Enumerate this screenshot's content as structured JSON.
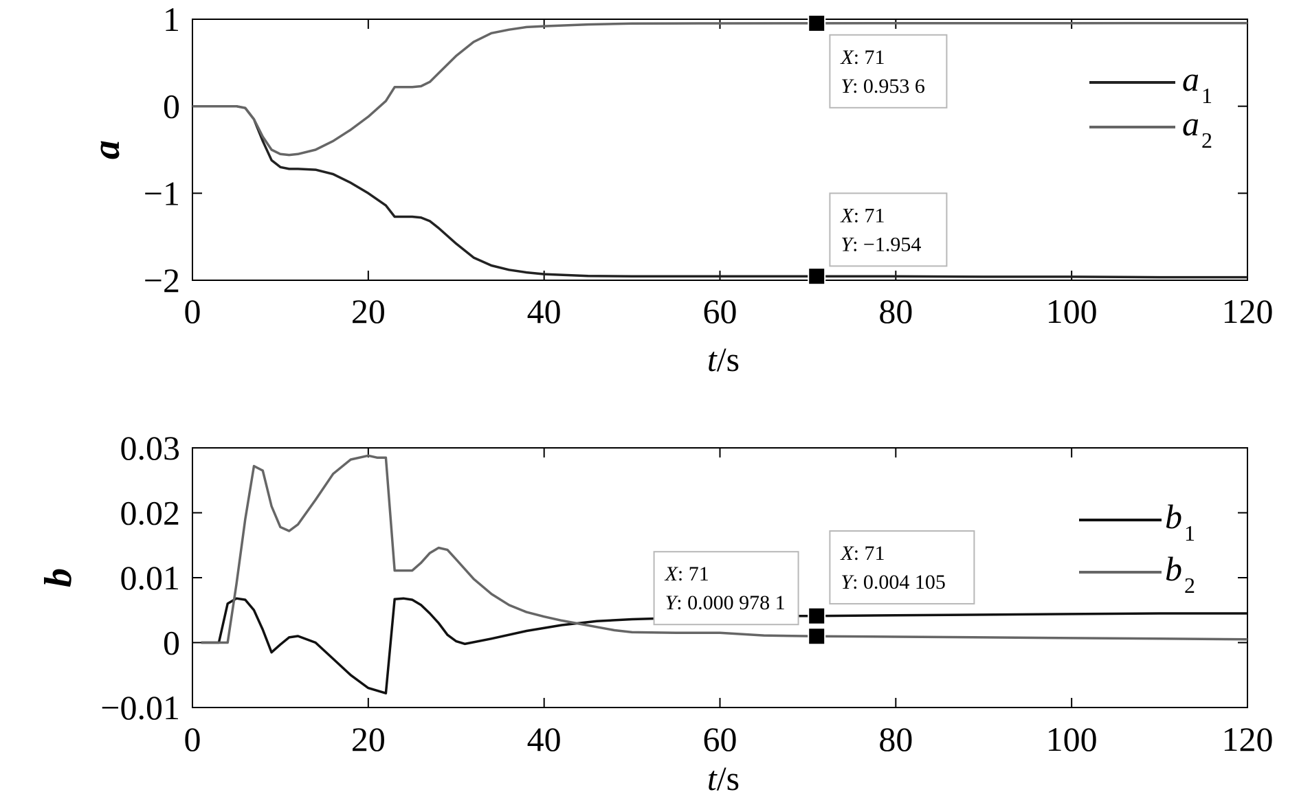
{
  "chart_data": [
    {
      "type": "line",
      "xlabel_var": "t",
      "xlabel_unit": "/s",
      "ylabel": "a",
      "xlim": [
        0,
        120
      ],
      "ylim": [
        -2,
        1
      ],
      "xticks": [
        0,
        20,
        40,
        60,
        80,
        100,
        120
      ],
      "yticks": [
        1,
        0,
        -1,
        -2
      ],
      "ytick_labels": [
        "1",
        "0",
        "−1",
        "−2"
      ],
      "legend_position": "top-right",
      "series": [
        {
          "name": "a",
          "sub": "1",
          "color": "#222222",
          "x": [
            0,
            5,
            6,
            7,
            8,
            9,
            10,
            11,
            12,
            14,
            16,
            18,
            20,
            22,
            23,
            24,
            25,
            26,
            27,
            28,
            30,
            32,
            34,
            36,
            38,
            40,
            45,
            50,
            55,
            60,
            71,
            80,
            90,
            100,
            110,
            120
          ],
          "y": [
            0,
            0,
            -0.02,
            -0.15,
            -0.4,
            -0.62,
            -0.7,
            -0.72,
            -0.72,
            -0.73,
            -0.78,
            -0.88,
            -1.0,
            -1.14,
            -1.27,
            -1.27,
            -1.27,
            -1.28,
            -1.32,
            -1.4,
            -1.58,
            -1.74,
            -1.83,
            -1.88,
            -1.91,
            -1.93,
            -1.95,
            -1.955,
            -1.955,
            -1.955,
            -1.954,
            -1.955,
            -1.96,
            -1.96,
            -1.965,
            -1.965
          ]
        },
        {
          "name": "a",
          "sub": "2",
          "color": "#666666",
          "x": [
            0,
            5,
            6,
            7,
            8,
            9,
            10,
            11,
            12,
            14,
            16,
            18,
            20,
            22,
            23,
            24,
            25,
            26,
            27,
            28,
            30,
            32,
            34,
            36,
            38,
            40,
            45,
            50,
            55,
            60,
            71,
            80,
            90,
            100,
            110,
            120
          ],
          "y": [
            0,
            0,
            -0.02,
            -0.15,
            -0.35,
            -0.5,
            -0.55,
            -0.56,
            -0.55,
            -0.5,
            -0.4,
            -0.27,
            -0.12,
            0.06,
            0.22,
            0.22,
            0.22,
            0.23,
            0.28,
            0.38,
            0.58,
            0.74,
            0.84,
            0.88,
            0.91,
            0.92,
            0.94,
            0.95,
            0.952,
            0.953,
            0.9536,
            0.955,
            0.955,
            0.955,
            0.956,
            0.956
          ]
        }
      ],
      "datatips": [
        {
          "x_text": "71",
          "y_text": "0.953 6",
          "x": 71,
          "y": 0.9536,
          "box_x": 72.5,
          "box_y": 0.82
        },
        {
          "x_text": "71",
          "y_text": "−1.954",
          "x": 71,
          "y": -1.954,
          "box_x": 72.5,
          "box_y": -1.0
        }
      ]
    },
    {
      "type": "line",
      "xlabel_var": "t",
      "xlabel_unit": "/s",
      "ylabel": "b",
      "xlim": [
        0,
        120
      ],
      "ylim": [
        -0.01,
        0.03
      ],
      "xticks": [
        0,
        20,
        40,
        60,
        80,
        100,
        120
      ],
      "yticks": [
        0.03,
        0.02,
        0.01,
        0,
        -0.01
      ],
      "ytick_labels": [
        "0.03",
        "0.02",
        "0.01",
        "0",
        "−0.01"
      ],
      "legend_position": "top-right",
      "series": [
        {
          "name": "b",
          "sub": "1",
          "color": "#111111",
          "x": [
            1,
            3,
            4,
            5,
            6,
            7,
            8,
            9,
            10,
            11,
            12,
            14,
            16,
            18,
            20,
            22,
            23,
            24,
            25,
            26,
            27,
            28,
            29,
            30,
            31,
            34,
            38,
            42,
            46,
            50,
            55,
            60,
            65,
            71,
            80,
            90,
            100,
            110,
            120
          ],
          "y": [
            0,
            0,
            0.006,
            0.0068,
            0.0066,
            0.005,
            0.002,
            -0.0015,
            -0.0003,
            0.0008,
            0.001,
            0,
            -0.0025,
            -0.005,
            -0.007,
            -0.0078,
            0.0067,
            0.0068,
            0.0066,
            0.0058,
            0.0045,
            0.003,
            0.0012,
            0.0002,
            -0.0002,
            0.0006,
            0.0018,
            0.0027,
            0.0033,
            0.0036,
            0.0038,
            0.004,
            0.0041,
            0.004105,
            0.0042,
            0.0043,
            0.0044,
            0.0045,
            0.0045
          ]
        },
        {
          "name": "b",
          "sub": "2",
          "color": "#666666",
          "x": [
            1,
            3,
            4,
            5,
            6,
            7,
            8,
            9,
            10,
            11,
            12,
            14,
            16,
            18,
            20,
            21,
            22,
            23,
            24,
            25,
            26,
            27,
            28,
            29,
            30,
            32,
            34,
            36,
            38,
            40,
            42,
            44,
            46,
            48,
            50,
            55,
            60,
            65,
            71,
            80,
            90,
            100,
            110,
            120
          ],
          "y": [
            0,
            0,
            0,
            0.009,
            0.019,
            0.0272,
            0.0265,
            0.021,
            0.0178,
            0.0172,
            0.0182,
            0.022,
            0.026,
            0.0282,
            0.0288,
            0.0285,
            0.0285,
            0.0111,
            0.0111,
            0.0111,
            0.0123,
            0.0138,
            0.0146,
            0.0143,
            0.0128,
            0.0098,
            0.0075,
            0.0058,
            0.0047,
            0.004,
            0.0034,
            0.0029,
            0.0024,
            0.0019,
            0.0016,
            0.0015,
            0.0015,
            0.0011,
            0.0009781,
            0.0009,
            0.0008,
            0.0007,
            0.0006,
            0.0005
          ]
        }
      ],
      "datatips": [
        {
          "x_text": "71",
          "y_text": "0.000 978 1",
          "x": 71,
          "y": 0.0009781,
          "box_x": 52.5,
          "box_y": 0.014
        },
        {
          "x_text": "71",
          "y_text": "0.004 105",
          "x": 71,
          "y": 0.004105,
          "box_x": 72.5,
          "box_y": 0.0172
        }
      ]
    }
  ]
}
